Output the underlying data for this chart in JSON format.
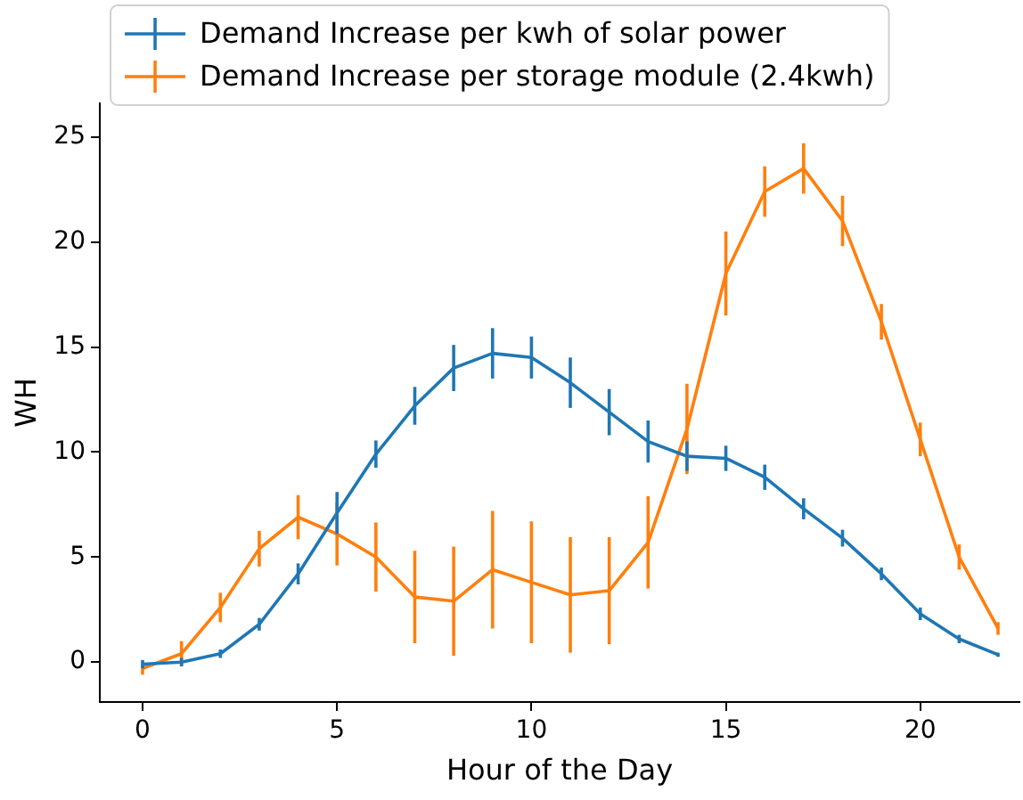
{
  "chart_data": {
    "type": "line",
    "xlabel": "Hour of the Day",
    "ylabel": "WH",
    "x": [
      0,
      1,
      2,
      3,
      4,
      5,
      6,
      7,
      8,
      9,
      10,
      11,
      12,
      13,
      14,
      15,
      16,
      17,
      18,
      19,
      20,
      21,
      22
    ],
    "series": [
      {
        "name": "Demand Increase per kwh of solar power",
        "color": "#1f77b4",
        "values": [
          -0.1,
          0.0,
          0.4,
          1.8,
          4.2,
          7.1,
          9.9,
          12.2,
          14.0,
          14.7,
          14.5,
          13.3,
          11.9,
          10.5,
          9.8,
          9.7,
          8.8,
          7.3,
          5.9,
          4.2,
          2.3,
          1.1,
          0.35
        ],
        "errors": [
          0.2,
          0.2,
          0.2,
          0.3,
          0.5,
          1.0,
          0.65,
          0.9,
          1.1,
          1.2,
          1.0,
          1.2,
          1.1,
          1.0,
          0.7,
          0.6,
          0.6,
          0.5,
          0.4,
          0.3,
          0.3,
          0.2,
          0.1
        ]
      },
      {
        "name": "Demand Increase per storage module (2.4kwh)",
        "color": "#ff7f0e",
        "values": [
          -0.3,
          0.4,
          2.6,
          5.4,
          6.9,
          6.1,
          5.0,
          3.1,
          2.9,
          4.4,
          3.8,
          3.2,
          3.4,
          5.7,
          11.1,
          18.5,
          22.4,
          23.5,
          21.0,
          16.2,
          10.6,
          5.0,
          1.6
        ],
        "errors": [
          0.3,
          0.6,
          0.7,
          0.85,
          1.05,
          1.5,
          1.65,
          2.2,
          2.6,
          2.8,
          2.9,
          2.75,
          2.55,
          2.2,
          2.15,
          2.0,
          1.2,
          1.2,
          1.2,
          0.85,
          0.8,
          0.6,
          0.3
        ]
      }
    ],
    "xlim": [
      -1.1,
      22.55
    ],
    "xticks": [
      0,
      5,
      10,
      15,
      20
    ],
    "ylim": [
      -1.9,
      26.6
    ],
    "yticks": [
      0,
      5,
      10,
      15,
      20,
      25
    ],
    "grid": false,
    "legend": "top left",
    "marker": "none",
    "line_style": "solid"
  }
}
